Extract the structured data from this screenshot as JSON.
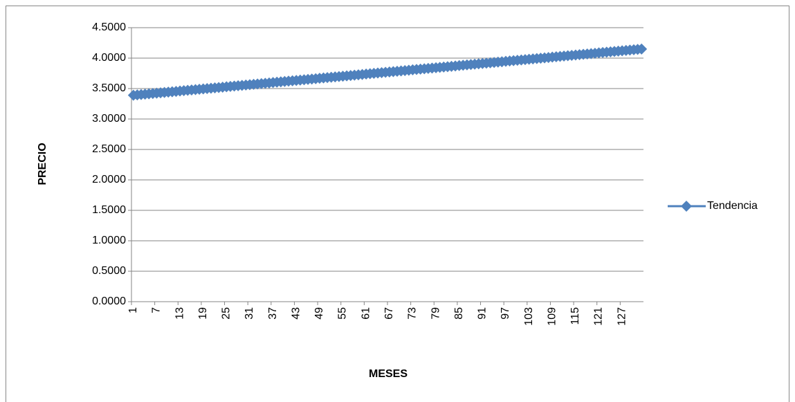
{
  "chart_data": {
    "type": "line",
    "x_label": "MESES",
    "y_label": "PRECIO",
    "categories": [
      1,
      null,
      null,
      null,
      null,
      null,
      7,
      null,
      null,
      null,
      null,
      null,
      13,
      null,
      null,
      null,
      null,
      null,
      19,
      null,
      null,
      null,
      null,
      null,
      25,
      null,
      null,
      null,
      null,
      null,
      31,
      null,
      null,
      null,
      null,
      null,
      37,
      null,
      null,
      null,
      null,
      null,
      43,
      null,
      null,
      null,
      null,
      null,
      49,
      null,
      null,
      null,
      null,
      null,
      55,
      null,
      null,
      null,
      null,
      null,
      61,
      null,
      null,
      null,
      null,
      null,
      67,
      null,
      null,
      null,
      null,
      null,
      73,
      null,
      null,
      null,
      null,
      null,
      79,
      null,
      null,
      null,
      null,
      null,
      85,
      null,
      null,
      null,
      null,
      null,
      91,
      null,
      null,
      null,
      null,
      null,
      97,
      null,
      null,
      null,
      null,
      null,
      103,
      null,
      null,
      null,
      null,
      null,
      109,
      null,
      null,
      null,
      null,
      null,
      115,
      null,
      null,
      null,
      null,
      null,
      121,
      null,
      null,
      null,
      null,
      null,
      127,
      null,
      null,
      null,
      null,
      null
    ],
    "series": [
      {
        "name": "Tendencia",
        "color": "#4f81bd",
        "values": [
          3.39,
          3.3958,
          3.4016,
          3.4074,
          3.4132,
          3.419,
          3.4248,
          3.4306,
          3.4364,
          3.4422,
          3.448,
          3.4538,
          3.4596,
          3.4654,
          3.4712,
          3.477,
          3.4828,
          3.4886,
          3.4944,
          3.5002,
          3.506,
          3.5118,
          3.5176,
          3.5234,
          3.5292,
          3.535,
          3.5408,
          3.5466,
          3.5524,
          3.5582,
          3.564,
          3.5698,
          3.5756,
          3.5814,
          3.5872,
          3.593,
          3.5988,
          3.6046,
          3.6104,
          3.6162,
          3.622,
          3.6278,
          3.6336,
          3.6394,
          3.6452,
          3.651,
          3.6568,
          3.6626,
          3.6684,
          3.6742,
          3.68,
          3.6858,
          3.6916,
          3.6974,
          3.7032,
          3.709,
          3.7148,
          3.7206,
          3.7264,
          3.7322,
          3.738,
          3.7438,
          3.7496,
          3.7554,
          3.7612,
          3.767,
          3.7728,
          3.7786,
          3.7844,
          3.7902,
          3.796,
          3.8018,
          3.8076,
          3.8134,
          3.8192,
          3.825,
          3.8308,
          3.8366,
          3.8424,
          3.8482,
          3.854,
          3.8598,
          3.8656,
          3.8714,
          3.8772,
          3.883,
          3.8888,
          3.8946,
          3.9004,
          3.9062,
          3.912,
          3.9178,
          3.9236,
          3.9294,
          3.9352,
          3.941,
          3.9468,
          3.9526,
          3.9584,
          3.9642,
          3.97,
          3.9758,
          3.9816,
          3.9874,
          3.9932,
          3.999,
          4.0048,
          4.0106,
          4.0164,
          4.0222,
          4.028,
          4.0338,
          4.0396,
          4.0454,
          4.0512,
          4.057,
          4.0628,
          4.0686,
          4.0744,
          4.0802,
          4.086,
          4.0918,
          4.0976,
          4.1034,
          4.1092,
          4.115,
          4.1208,
          4.1266,
          4.1324,
          4.1382,
          4.144,
          4.1498
        ]
      }
    ],
    "ylim": [
      0,
      4.5
    ],
    "yticks": [
      {
        "value": 0,
        "label": "0.0000"
      },
      {
        "value": 0.5,
        "label": "0.5000"
      },
      {
        "value": 1,
        "label": "1.0000"
      },
      {
        "value": 1.5,
        "label": "1.5000"
      },
      {
        "value": 2,
        "label": "2.0000"
      },
      {
        "value": 2.5,
        "label": "2.5000"
      },
      {
        "value": 3,
        "label": "3.0000"
      },
      {
        "value": 3.5,
        "label": "3.5000"
      },
      {
        "value": 4,
        "label": "4.0000"
      },
      {
        "value": 4.5,
        "label": "4.5000"
      }
    ],
    "grid": true,
    "legend": "right"
  }
}
